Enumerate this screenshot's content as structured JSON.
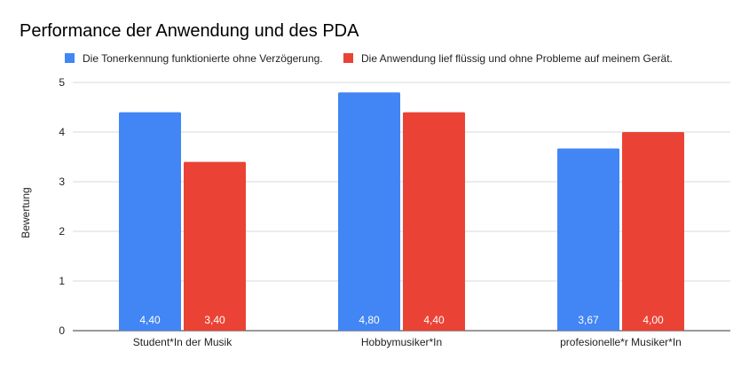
{
  "chart_data": {
    "type": "bar",
    "title": "Performance der Anwendung und des PDA",
    "ylabel": "Bewertung",
    "xlabel": "",
    "ylim": [
      0,
      5
    ],
    "yticks": [
      0,
      1,
      2,
      3,
      4,
      5
    ],
    "grid": true,
    "legend_position": "top",
    "categories": [
      "Student*In der Musik",
      "Hobbymusiker*In",
      "profesionelle*r Musiker*In"
    ],
    "series": [
      {
        "name": "Die Tonerkennung funktionierte ohne Verzögerung.",
        "color": "#4285f4",
        "values": [
          4.4,
          4.8,
          3.67
        ],
        "labels": [
          "4,40",
          "4,80",
          "3,67"
        ]
      },
      {
        "name": "Die Anwendung lief flüssig und ohne Probleme auf meinem Gerät.",
        "color": "#ea4335",
        "values": [
          3.4,
          4.4,
          4.0
        ],
        "labels": [
          "3,40",
          "4,40",
          "4,00"
        ]
      }
    ]
  }
}
